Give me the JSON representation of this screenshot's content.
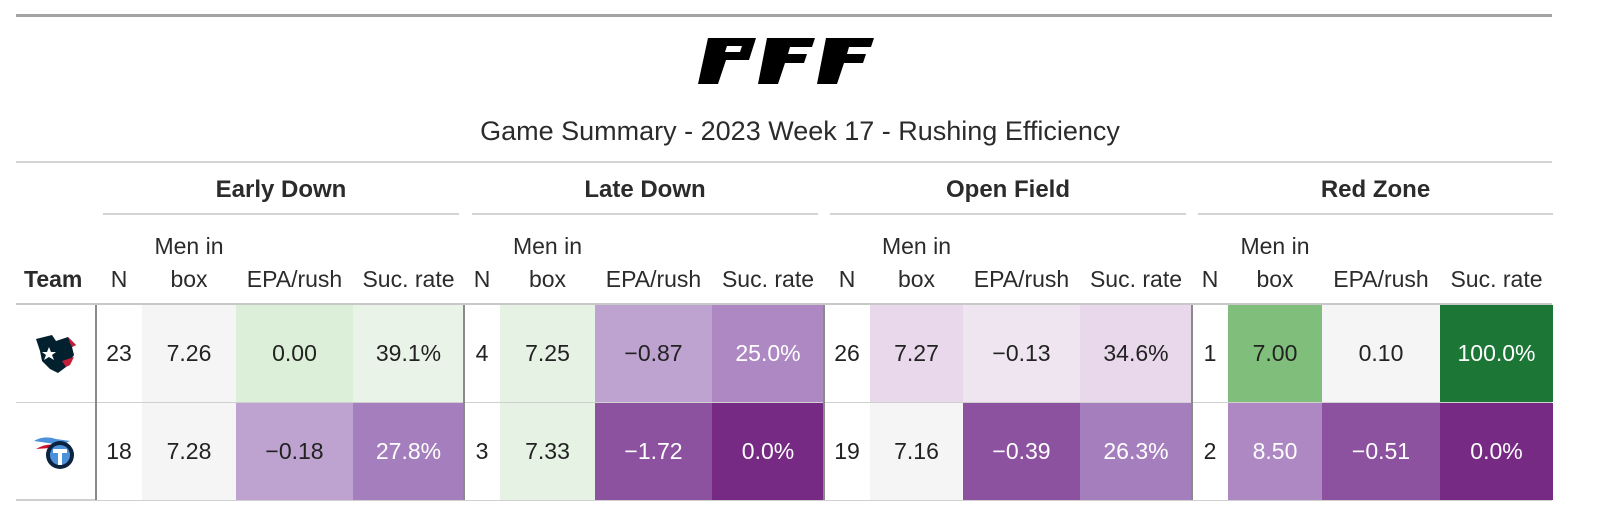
{
  "logo_text": "PFF",
  "title": "Game Summary - 2023 Week 17 - Rushing Efficiency",
  "team_header": "Team",
  "groups": [
    "Early Down",
    "Late Down",
    "Open Field",
    "Red Zone"
  ],
  "column_labels": {
    "n": "N",
    "box_line1": "Men in",
    "box_line2": "box",
    "epa": "EPA/rush",
    "suc": "Suc. rate"
  },
  "rows": [
    {
      "team": "Houston Texans",
      "logo_icon": "texans-logo-icon",
      "cells": [
        {
          "text": "23"
        },
        {
          "text": "7.26"
        },
        {
          "text": "0.00"
        },
        {
          "text": "39.1%"
        },
        {
          "text": "4"
        },
        {
          "text": "7.25"
        },
        {
          "text": "−0.87"
        },
        {
          "text": "25.0%"
        },
        {
          "text": "26"
        },
        {
          "text": "7.27"
        },
        {
          "text": "−0.13"
        },
        {
          "text": "34.6%"
        },
        {
          "text": "1"
        },
        {
          "text": "7.00"
        },
        {
          "text": "0.10"
        },
        {
          "text": "100.0%"
        }
      ]
    },
    {
      "team": "Tennessee Titans",
      "logo_icon": "titans-logo-icon",
      "cells": [
        {
          "text": "18"
        },
        {
          "text": "7.28"
        },
        {
          "text": "−0.18"
        },
        {
          "text": "27.8%"
        },
        {
          "text": "3"
        },
        {
          "text": "7.33"
        },
        {
          "text": "−1.72"
        },
        {
          "text": "0.0%"
        },
        {
          "text": "19"
        },
        {
          "text": "7.16"
        },
        {
          "text": "−0.39"
        },
        {
          "text": "26.3%"
        },
        {
          "text": "2"
        },
        {
          "text": "8.50"
        },
        {
          "text": "−0.51"
        },
        {
          "text": "0.0%"
        }
      ]
    }
  ],
  "cell_colors": [
    [
      "#ffffff",
      "#f5f5f5",
      "#dcefd8",
      "#eaf3e7",
      "#ffffff",
      "#e6f2e3",
      "#bea2d0",
      "#ad88c3",
      "#ffffff",
      "#e9d8eb",
      "#efe5f0",
      "#e9d8eb",
      "#ffffff",
      "#80bf7b",
      "#f5f5f5",
      "#1c7636"
    ],
    [
      "#ffffff",
      "#f5f5f5",
      "#bea2d0",
      "#a57fbd",
      "#ffffff",
      "#e6f2e3",
      "#8c52a0",
      "#762a83",
      "#ffffff",
      "#f5f5f5",
      "#8c52a0",
      "#a57fbd",
      "#ffffff",
      "#ad88c3",
      "#8c52a0",
      "#762a83"
    ]
  ],
  "text_colors": [
    [
      "#222222",
      "#222222",
      "#222222",
      "#222222",
      "#222222",
      "#222222",
      "#222222",
      "#ffffff",
      "#222222",
      "#222222",
      "#222222",
      "#222222",
      "#222222",
      "#222222",
      "#222222",
      "#ffffff"
    ],
    [
      "#222222",
      "#222222",
      "#222222",
      "#ffffff",
      "#222222",
      "#222222",
      "#ffffff",
      "#ffffff",
      "#222222",
      "#222222",
      "#ffffff",
      "#ffffff",
      "#222222",
      "#ffffff",
      "#ffffff",
      "#ffffff"
    ]
  ],
  "chart_data": {
    "type": "table",
    "title": "Game Summary - 2023 Week 17 - Rushing Efficiency",
    "column_groups": [
      "Early Down",
      "Late Down",
      "Open Field",
      "Red Zone"
    ],
    "columns": [
      "N",
      "Men in box",
      "EPA/rush",
      "Suc. rate"
    ],
    "rows": [
      {
        "team": "Houston Texans",
        "Early Down": {
          "N": 23,
          "Men in box": 7.26,
          "EPA/rush": 0.0,
          "Suc. rate": 39.1
        },
        "Late Down": {
          "N": 4,
          "Men in box": 7.25,
          "EPA/rush": -0.87,
          "Suc. rate": 25.0
        },
        "Open Field": {
          "N": 26,
          "Men in box": 7.27,
          "EPA/rush": -0.13,
          "Suc. rate": 34.6
        },
        "Red Zone": {
          "N": 1,
          "Men in box": 7.0,
          "EPA/rush": 0.1,
          "Suc. rate": 100.0
        }
      },
      {
        "team": "Tennessee Titans",
        "Early Down": {
          "N": 18,
          "Men in box": 7.28,
          "EPA/rush": -0.18,
          "Suc. rate": 27.8
        },
        "Late Down": {
          "N": 3,
          "Men in box": 7.33,
          "EPA/rush": -1.72,
          "Suc. rate": 0.0
        },
        "Open Field": {
          "N": 19,
          "Men in box": 7.16,
          "EPA/rush": -0.39,
          "Suc. rate": 26.3
        },
        "Red Zone": {
          "N": 2,
          "Men in box": 8.5,
          "EPA/rush": -0.51,
          "Suc. rate": 0.0
        }
      }
    ]
  }
}
